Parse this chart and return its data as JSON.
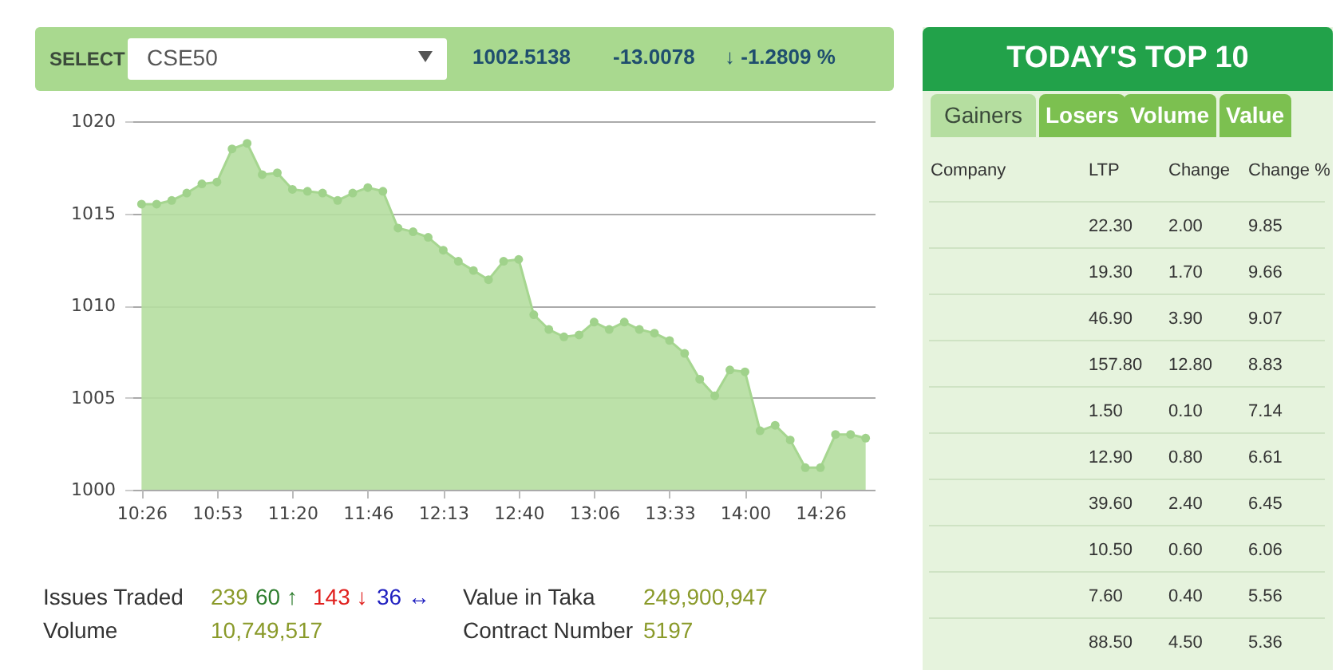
{
  "chart_data": [
    {
      "type": "area",
      "title": "CSE50",
      "categories": [
        "10:26",
        null,
        null,
        null,
        null,
        "10:53",
        null,
        null,
        null,
        null,
        "11:20",
        null,
        null,
        null,
        null,
        "11:46",
        null,
        null,
        null,
        null,
        "12:13",
        null,
        null,
        null,
        null,
        "12:40",
        null,
        null,
        null,
        null,
        "13:06",
        null,
        null,
        null,
        null,
        "13:33",
        null,
        null,
        null,
        null,
        "14:00",
        null,
        null,
        null,
        null,
        "14:26",
        null,
        null,
        null
      ],
      "series": [
        {
          "color": "#b5dea0",
          "values": [
            1015.5,
            1015.5,
            1015.7,
            1016.1,
            1016.6,
            1016.7,
            1018.5,
            1018.8,
            1017.1,
            1017.2,
            1016.3,
            1016.2,
            1016.1,
            1015.7,
            1016.1,
            1016.4,
            1016.2,
            1014.2,
            1014.0,
            1013.7,
            1013.0,
            1012.4,
            1011.9,
            1011.4,
            1012.4,
            1012.5,
            1009.5,
            1008.7,
            1008.3,
            1008.4,
            1009.1,
            1008.7,
            1009.1,
            1008.7,
            1008.5,
            1008.1,
            1007.4,
            1006.0,
            1005.1,
            1006.5,
            1006.4,
            1003.2,
            1003.5,
            1002.7,
            1001.2,
            1001.2,
            1003.0,
            1003.0,
            1002.8
          ]
        }
      ],
      "ylim": [
        1000,
        1020
      ],
      "yticks": [
        1000,
        1005,
        1010,
        1015,
        1020
      ],
      "grid": "y",
      "marker": "circle",
      "annotations": [
        "SELECT",
        "1002.5138",
        "-13.0078",
        "↓ -1.2809 %",
        "Issues Traded",
        "239",
        "60 ↑",
        "143 ↓",
        "36 ↔",
        "Volume",
        "10,749,517",
        "Value in Taka",
        "249,900,947",
        "Contract Number",
        "5197"
      ]
    },
    {
      "type": "other",
      "title": "TODAY'S TOP 10",
      "annotations": [
        "Gainers",
        "Losers",
        "Volume",
        "Value",
        "Company",
        "LTP",
        "Change",
        "Change %",
        "22.30",
        "2.00",
        "9.85",
        "19.30",
        "1.70",
        "9.66",
        "46.90",
        "3.90",
        "9.07",
        "157.80",
        "12.80",
        "8.83",
        "1.50",
        "0.10",
        "7.14",
        "12.90",
        "0.80",
        "6.61",
        "39.60",
        "2.40",
        "6.45",
        "10.50",
        "0.60",
        "6.06",
        "7.60",
        "0.40",
        "5.56",
        "88.50",
        "4.50",
        "5.36"
      ]
    }
  ]
}
